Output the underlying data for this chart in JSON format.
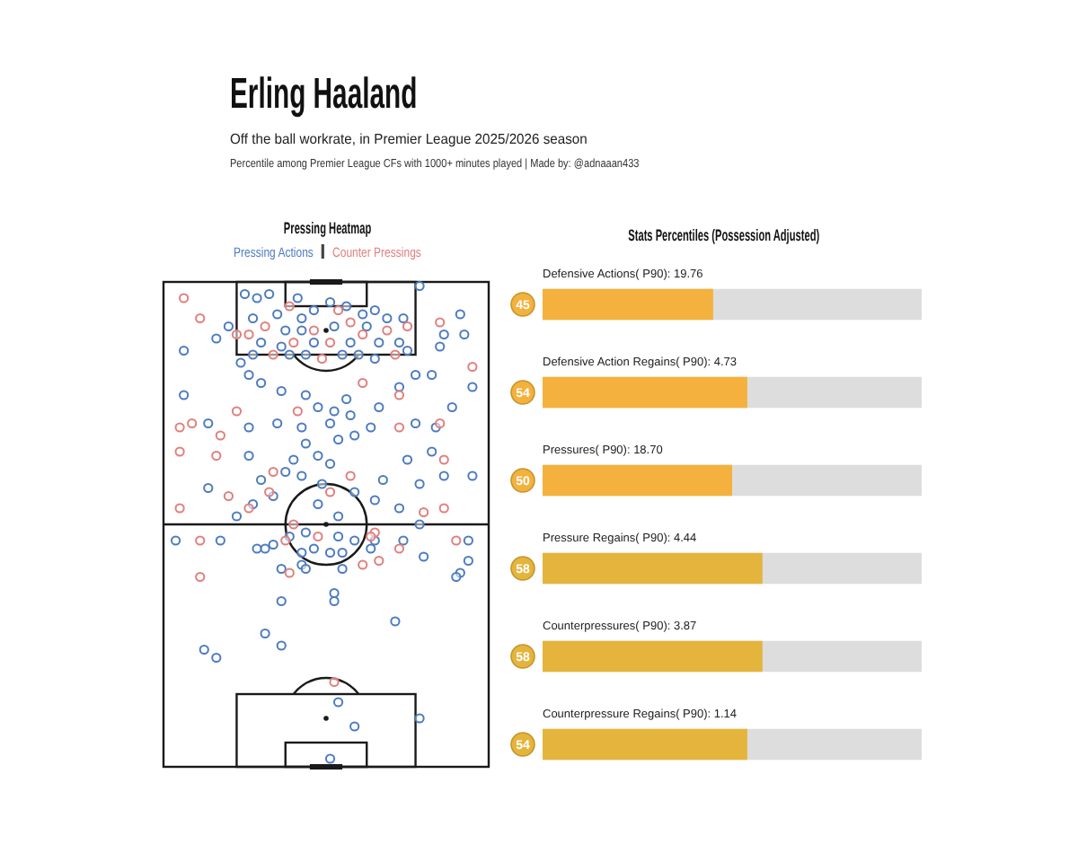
{
  "chart_data": [
    {
      "type": "other",
      "title": "Erling Haaland",
      "subtitle": "Off the ball workrate, in Premier League 2025/2026 season",
      "annotations": [
        "Percentile among Premier League CFs with 1000+ minutes played | Made by: @adnaaan433"
      ]
    },
    {
      "type": "other",
      "title": "Pressing Heatmap",
      "annotations": [
        "Pressing Actions",
        "Counter Pressings"
      ]
    },
    {
      "type": "bar",
      "orientation": "horizontal",
      "title": "Stats Percentiles (Possession Adjusted)",
      "categories": [
        "Defensive Actions( P90): 19.76",
        "Defensive Action Regains( P90): 4.73",
        "Pressures( P90): 18.70",
        "Pressure Regains( P90): 4.44",
        "Counterpressures( P90): 3.87",
        "Counterpressure Regains( P90): 1.14"
      ],
      "values": [
        45,
        54,
        50,
        58,
        58,
        54
      ],
      "colors": [
        "#f4b13d",
        "#f4b13d",
        "#f4b13d",
        "#e4b43c",
        "#e4b43c",
        "#e4b43c"
      ],
      "xlim": [
        0,
        100
      ],
      "tick_labels": "y",
      "data_labels": true
    }
  ]
}
